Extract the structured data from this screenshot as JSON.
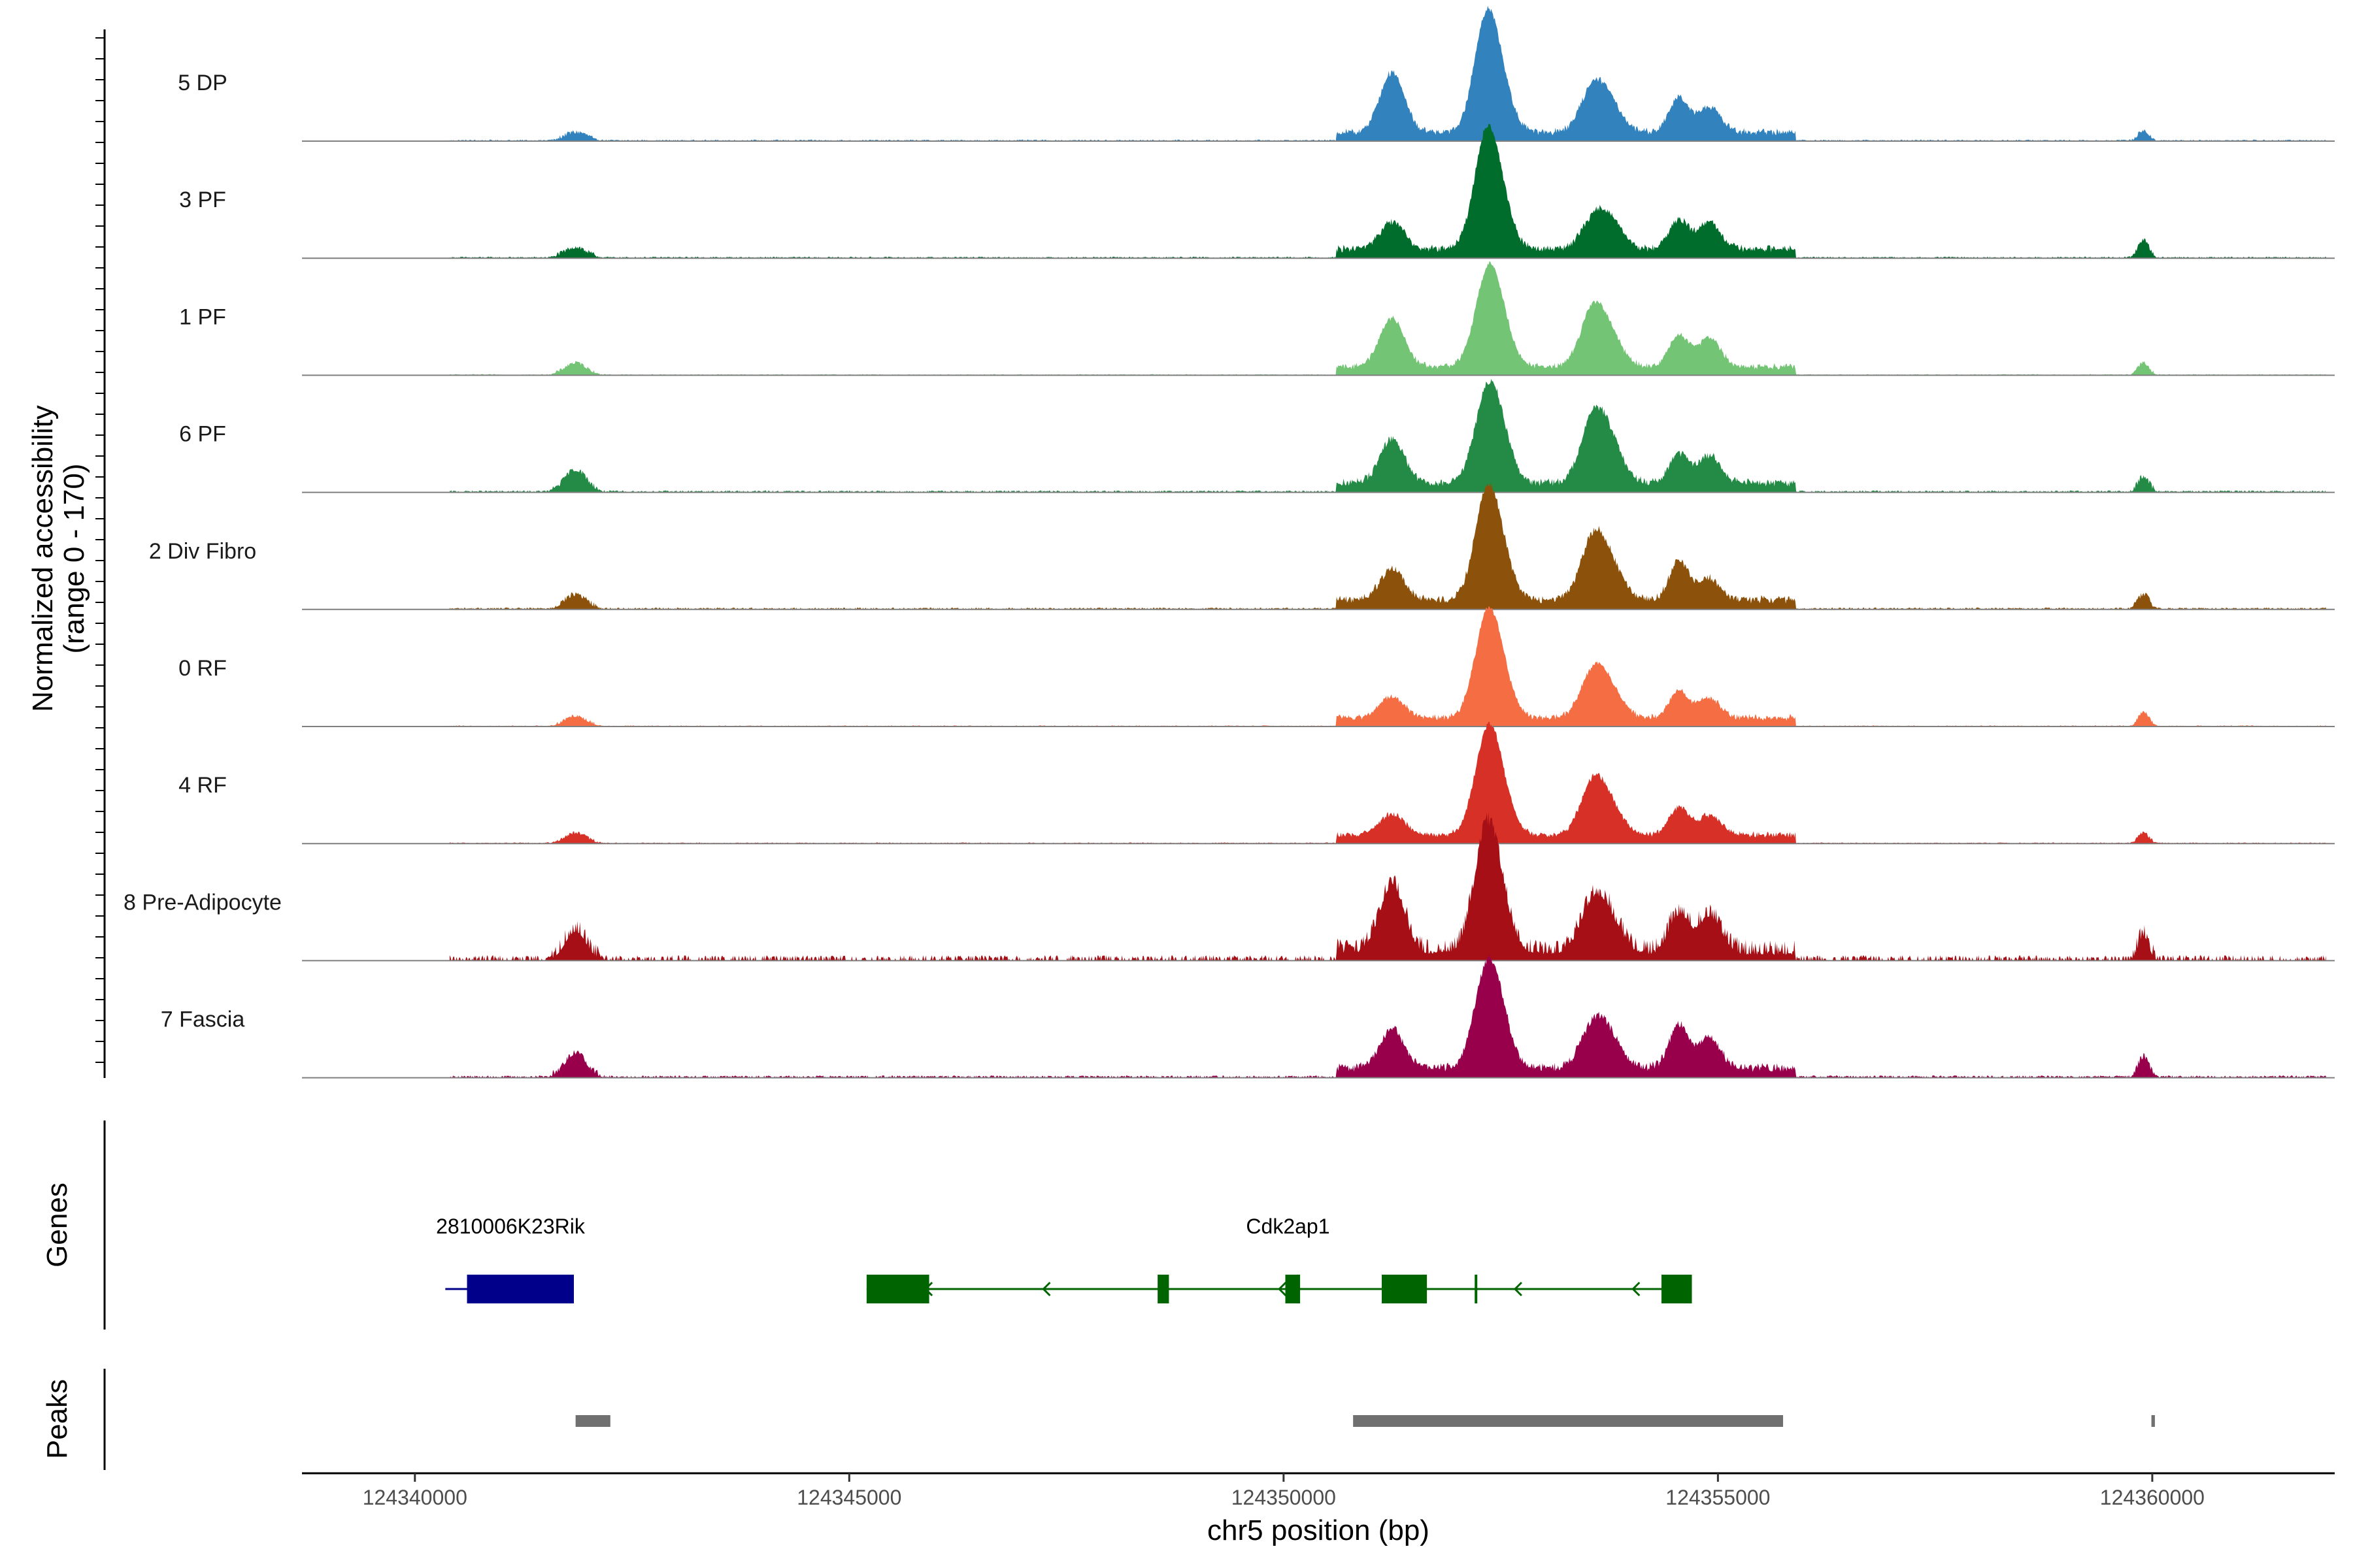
{
  "chart_data": {
    "type": "area",
    "chromosome": "chr5",
    "xlim": [
      124338700,
      124362100
    ],
    "xlabel": "chr5 position (bp)",
    "x_ticks": [
      124340000,
      124345000,
      124350000,
      124355000,
      124360000
    ],
    "x_tick_labels": [
      "124340000",
      "124345000",
      "124350000",
      "124355000",
      "124360000"
    ],
    "coverage": {
      "ylabel_line1": "Normalized accessibility",
      "ylabel_line2": "(range 0 - 170)",
      "ylim": [
        0,
        170
      ],
      "peaks_shape": [
        {
          "center": 124341850,
          "width": 120,
          "rel": 1.0
        },
        {
          "center": 124351250,
          "width": 140,
          "rel": 1.0
        },
        {
          "center": 124352300,
          "width": 130,
          "rel": 1.0
        },
        {
          "center": 124352400,
          "width": 160,
          "rel": 0.9
        },
        {
          "center": 124353550,
          "width": 140,
          "rel": 1.0
        },
        {
          "center": 124353750,
          "width": 150,
          "rel": 1.0
        },
        {
          "center": 124354550,
          "width": 110,
          "rel": 1.0
        },
        {
          "center": 124354900,
          "width": 130,
          "rel": 1.0
        },
        {
          "center": 124359900,
          "width": 60,
          "rel": 1.0
        }
      ],
      "series": [
        {
          "name": "5 DP",
          "color": "#3182bd",
          "peak_heights": [
            8,
            62,
            45,
            100,
            40,
            28,
            35,
            26,
            10
          ],
          "noise": 4
        },
        {
          "name": "3 PF",
          "color": "#006d2c",
          "peak_heights": [
            10,
            28,
            45,
            100,
            24,
            30,
            30,
            28,
            18
          ],
          "noise": 4
        },
        {
          "name": "1 PF",
          "color": "#74c476",
          "peak_heights": [
            12,
            50,
            20,
            100,
            52,
            30,
            32,
            30,
            12
          ],
          "noise": 3
        },
        {
          "name": "6 PF",
          "color": "#238b45",
          "peak_heights": [
            22,
            45,
            20,
            100,
            58,
            40,
            30,
            28,
            15
          ],
          "noise": 5
        },
        {
          "name": "2 Div Fibro",
          "color": "#8c510a",
          "peak_heights": [
            14,
            32,
            35,
            100,
            55,
            35,
            40,
            22,
            14
          ],
          "noise": 5
        },
        {
          "name": "0 RF",
          "color": "#f46d43",
          "peak_heights": [
            10,
            22,
            30,
            100,
            42,
            28,
            28,
            20,
            14
          ],
          "noise": 3
        },
        {
          "name": "4 RF",
          "color": "#d73027",
          "peak_heights": [
            10,
            22,
            30,
            100,
            48,
            28,
            28,
            20,
            10
          ],
          "noise": 3
        },
        {
          "name": "8 Pre-Adipocyte",
          "color": "#a50f15",
          "peak_heights": [
            30,
            70,
            50,
            100,
            45,
            30,
            40,
            38,
            25
          ],
          "noise": 14
        },
        {
          "name": "7 Fascia",
          "color": "#99004c",
          "peak_heights": [
            24,
            40,
            30,
            100,
            38,
            30,
            45,
            30,
            20
          ],
          "noise": 6
        }
      ]
    },
    "genes": {
      "ylabel": "Genes",
      "items": [
        {
          "name": "2810006K23Rik",
          "color": "#00008b",
          "strand": "+",
          "start": 124340350,
          "end": 124341830,
          "exons": [
            [
              124340600,
              124341830
            ]
          ],
          "label_pos": 124341100
        },
        {
          "name": "Cdk2ap1",
          "color": "#006400",
          "strand": "-",
          "start": 124345200,
          "end": 124354700,
          "exons": [
            [
              124345200,
              124345920
            ],
            [
              124348550,
              124348680
            ],
            [
              124350020,
              124350190
            ],
            [
              124351130,
              124351650
            ],
            [
              124352200,
              124352230
            ],
            [
              124354350,
              124354700
            ]
          ],
          "label_pos": 124350050
        }
      ]
    },
    "peaks": {
      "ylabel": "Peaks",
      "color": "#707070",
      "regions": [
        [
          124341850,
          124342250
        ],
        [
          124350800,
          124355750
        ],
        [
          124359990,
          124360030
        ]
      ]
    }
  }
}
